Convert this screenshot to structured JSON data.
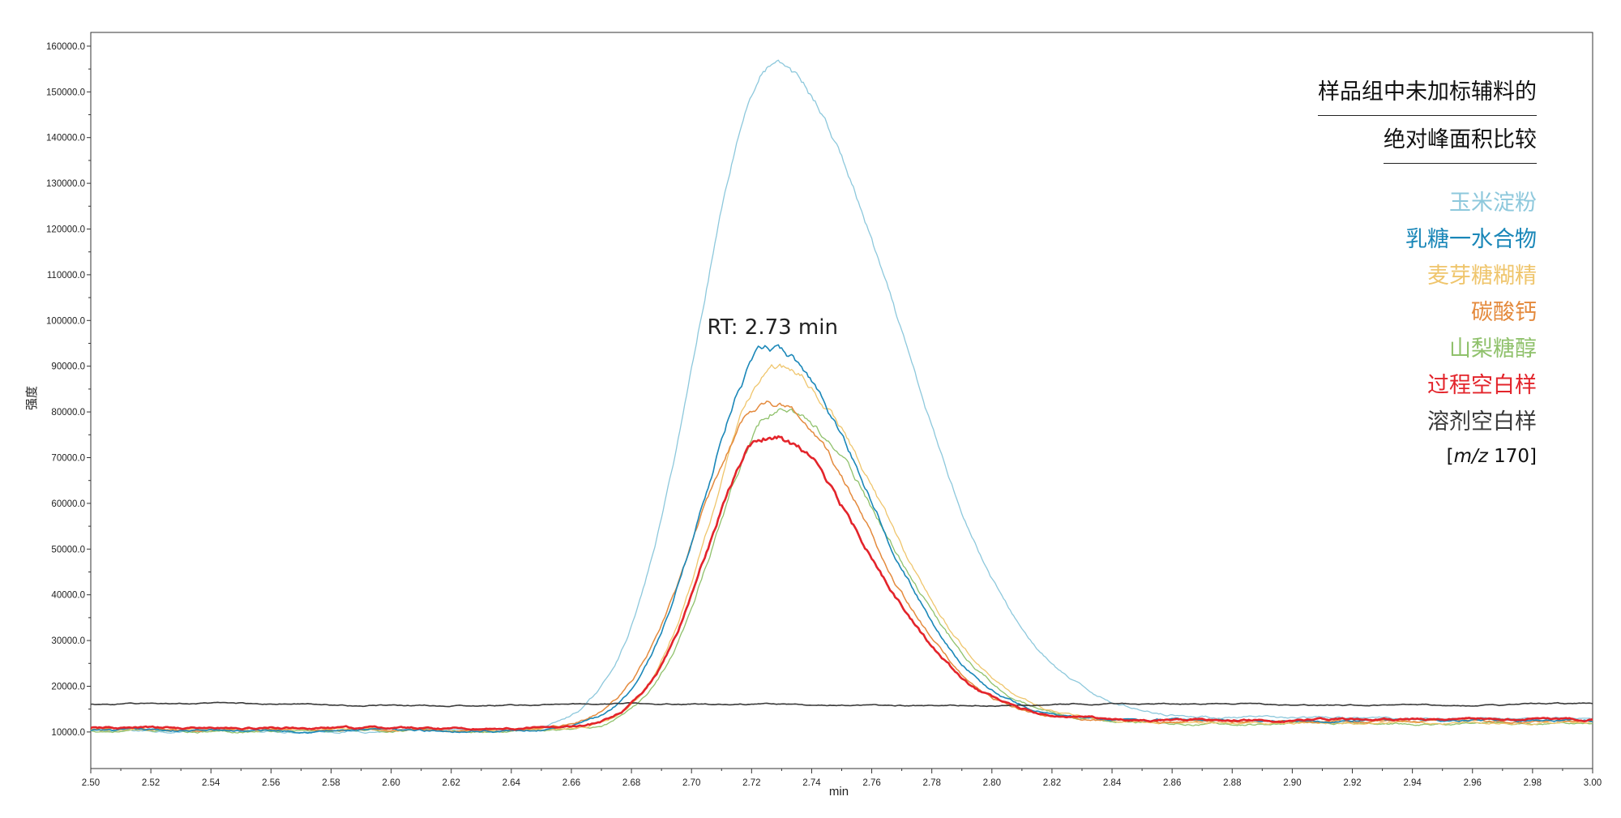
{
  "chart_data": {
    "type": "line",
    "title_lines": [
      "样品组中未加标辅料的",
      "绝对峰面积比较"
    ],
    "xlabel": "min",
    "ylabel": "强度",
    "xlim": [
      2.5,
      3.0
    ],
    "ylim": [
      2000,
      163000
    ],
    "x_ticks": [
      "2.50",
      "2.52",
      "2.54",
      "2.56",
      "2.58",
      "2.60",
      "2.62",
      "2.64",
      "2.66",
      "2.68",
      "2.70",
      "2.72",
      "2.74",
      "2.76",
      "2.78",
      "2.80",
      "2.82",
      "2.84",
      "2.86",
      "2.88",
      "2.90",
      "2.92",
      "2.94",
      "2.96",
      "2.98",
      "3.00"
    ],
    "y_ticks": [
      "10000.0",
      "20000.0",
      "30000.0",
      "40000.0",
      "50000.0",
      "60000.0",
      "70000.0",
      "80000.0",
      "90000.0",
      "100000.0",
      "110000.0",
      "120000.0",
      "130000.0",
      "140000.0",
      "150000.0",
      "160000.0"
    ],
    "annotation": {
      "text": "RT: 2.73 min",
      "x": 2.727,
      "y": 97000
    },
    "legend_note": {
      "prefix": "[",
      "italic": "m/z",
      "suffix": " 170]"
    },
    "series": [
      {
        "name": "玉米淀粉",
        "color": "#8dc8dc",
        "width": 1.3,
        "baseline": 10200,
        "peak": 145500,
        "center": 2.727,
        "sigma_left": 0.0245,
        "sigma_right": 0.042,
        "tail_end": 13000
      },
      {
        "name": "乳糖一水合物",
        "color": "#1a87b8",
        "width": 1.6,
        "baseline": 10300,
        "peak": 83000,
        "center": 2.726,
        "sigma_left": 0.022,
        "sigma_right": 0.034,
        "tail_end": 12600
      },
      {
        "name": "麦芽糖糊精",
        "color": "#efc56c",
        "width": 1.3,
        "baseline": 10400,
        "peak": 79000,
        "center": 2.728,
        "sigma_left": 0.021,
        "sigma_right": 0.036,
        "tail_end": 12000
      },
      {
        "name": "碳酸钙",
        "color": "#e48a3d",
        "width": 1.5,
        "baseline": 10500,
        "peak": 72000,
        "center": 2.725,
        "sigma_left": 0.023,
        "sigma_right": 0.034,
        "tail_end": 12300
      },
      {
        "name": "山梨糖醇",
        "color": "#8fc16b",
        "width": 1.3,
        "baseline": 10200,
        "peak": 70500,
        "center": 2.729,
        "sigma_left": 0.021,
        "sigma_right": 0.036,
        "tail_end": 11800
      },
      {
        "name": "过程空白样",
        "color": "#e3242b",
        "width": 2.6,
        "baseline": 10800,
        "peak": 64000,
        "center": 2.725,
        "sigma_left": 0.02,
        "sigma_right": 0.034,
        "tail_end": 12800
      },
      {
        "name": "溶剂空白样",
        "color": "#3a3a3a",
        "width": 1.6,
        "flat": 16000,
        "peak": 0
      }
    ]
  }
}
